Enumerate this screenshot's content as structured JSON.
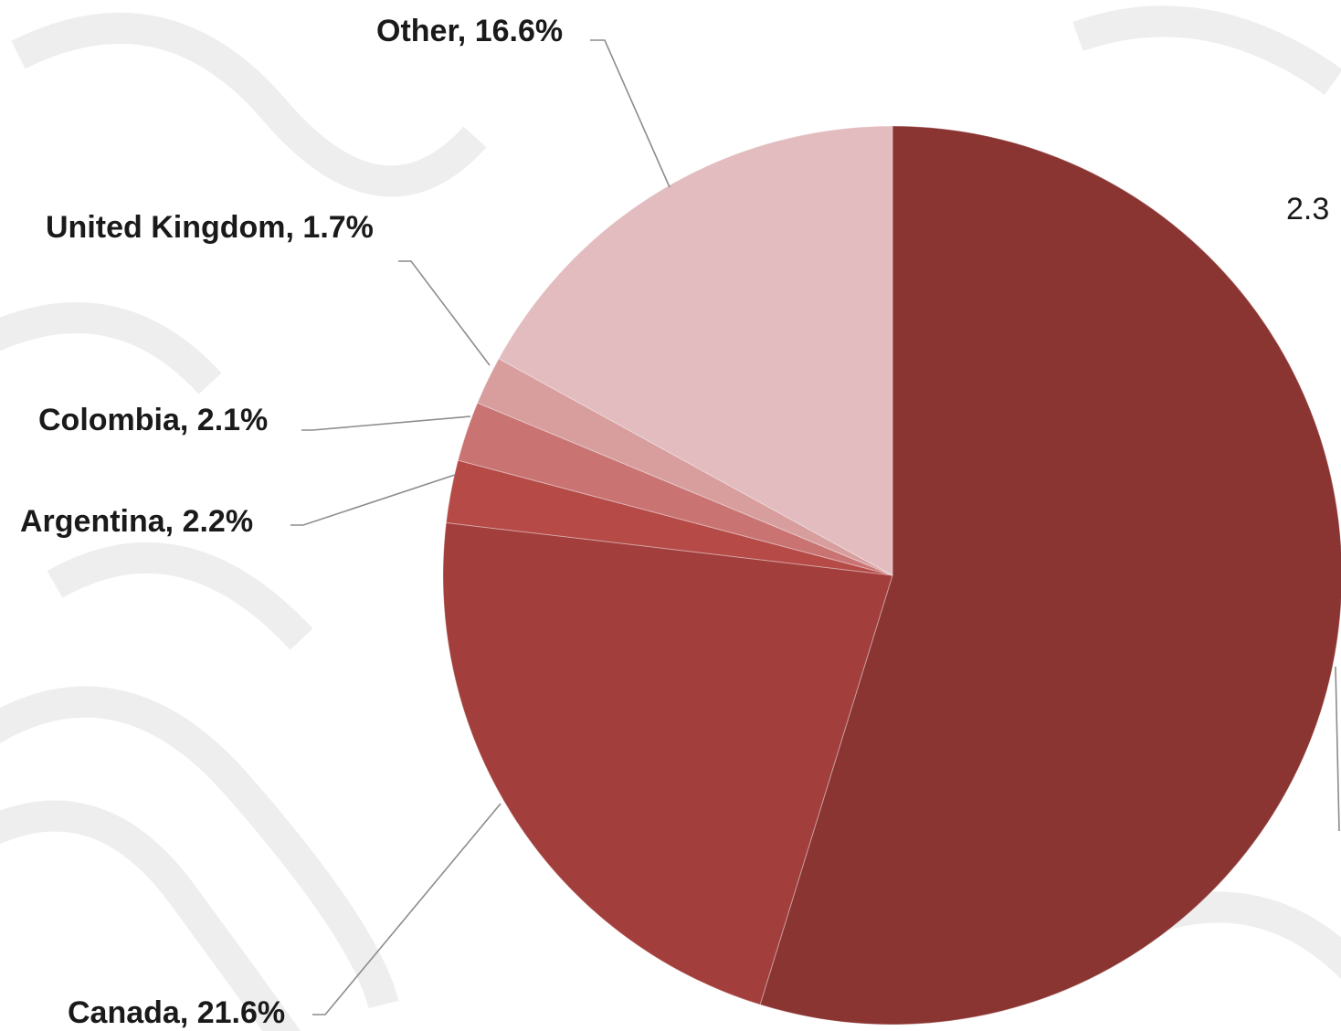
{
  "chart_data": {
    "type": "pie",
    "title": "",
    "start_angle_deg": 0,
    "direction": "clockwise",
    "slices": [
      {
        "label": "",
        "value": 53.5,
        "color": "#8b3533",
        "show_label": false
      },
      {
        "label": "Canada",
        "value": 21.6,
        "display": "Canada, 21.6%",
        "color": "#a23f3d"
      },
      {
        "label": "Argentina",
        "value": 2.2,
        "display": "Argentina, 2.2%",
        "color": "#b54a47"
      },
      {
        "label": "Colombia",
        "value": 2.1,
        "display": "Colombia, 2.1%",
        "color": "#c97472"
      },
      {
        "label": "United Kingdom",
        "value": 1.7,
        "display": "United Kingdom, 1.7%",
        "color": "#d89e9e"
      },
      {
        "label": "Other",
        "value": 16.6,
        "display": "Other, 16.6%",
        "color": "#e2bcbf"
      }
    ],
    "partial_label": "2.3"
  }
}
